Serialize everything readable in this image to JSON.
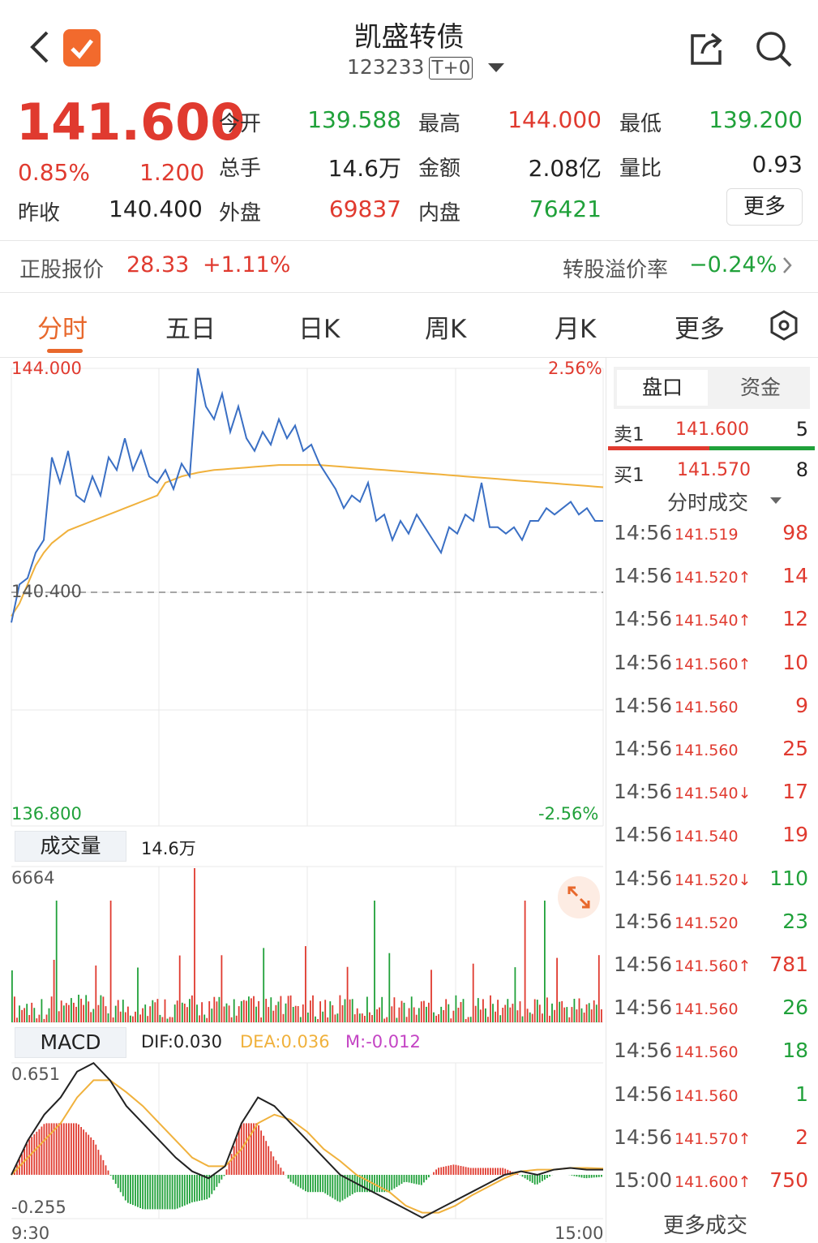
{
  "header": {
    "title": "凯盛转债",
    "code": "123233",
    "trade_tag": "T+0"
  },
  "quote": {
    "price": "141.600",
    "change_pct": "0.85%",
    "change": "1.200",
    "prev_close_label": "昨收",
    "prev_close": "140.400",
    "open_label": "今开",
    "open": "139.588",
    "high_label": "最高",
    "high": "144.000",
    "low_label": "最低",
    "low": "139.200",
    "volume_label": "总手",
    "volume": "14.6万",
    "amount_label": "金额",
    "amount": "2.08亿",
    "ratio_label": "量比",
    "ratio": "0.93",
    "outer_label": "外盘",
    "outer": "69837",
    "inner_label": "内盘",
    "inner": "76421",
    "more_label": "更多"
  },
  "stock": {
    "label": "正股报价",
    "price": "28.33",
    "change": "+1.11%",
    "premium_label": "转股溢价率",
    "premium": "−0.24%"
  },
  "tabs": [
    "分时",
    "五日",
    "日K",
    "周K",
    "月K",
    "更多"
  ],
  "chart": {
    "y_top": "144.000",
    "y_bottom": "136.800",
    "y_mid": "140.400",
    "pct_top": "2.56%",
    "pct_bottom": "-2.56%",
    "vol_label": "成交量",
    "vol_value": "14.6万",
    "vol_max": "6664",
    "macd_label": "MACD",
    "dif": "DIF:0.030",
    "dea": "DEA:0.036",
    "m": "M:-0.012",
    "macd_top": "0.651",
    "macd_bottom": "-0.255",
    "t_start": "9:30",
    "t_end": "15:00",
    "colors": {
      "price": "#3a6fc4",
      "avg": "#f0b13c",
      "up": "#e03a2f",
      "down": "#20a13a",
      "dea": "#f0b13c",
      "m": "#c444c4"
    }
  },
  "chart_data": {
    "type": "line",
    "price": [
      140.0,
      140.6,
      140.7,
      141.1,
      141.3,
      142.6,
      142.2,
      142.7,
      142.0,
      141.9,
      142.3,
      142.0,
      142.6,
      142.4,
      142.9,
      142.4,
      142.7,
      142.3,
      142.2,
      142.4,
      142.1,
      142.5,
      142.3,
      144.0,
      143.4,
      143.2,
      143.6,
      143.0,
      143.4,
      142.9,
      142.7,
      143.0,
      142.8,
      143.2,
      142.9,
      143.1,
      142.7,
      142.8,
      142.5,
      142.3,
      142.1,
      141.8,
      142.0,
      141.9,
      142.2,
      141.6,
      141.7,
      141.3,
      141.6,
      141.4,
      141.7,
      141.5,
      141.3,
      141.1,
      141.5,
      141.4,
      141.7,
      141.6,
      142.2,
      141.5,
      141.5,
      141.4,
      141.5,
      141.3,
      141.6,
      141.6,
      141.8,
      141.7,
      141.8,
      141.9,
      141.7,
      141.8,
      141.6,
      141.6
    ],
    "avg": [
      140.1,
      140.3,
      140.6,
      140.9,
      141.1,
      141.25,
      141.35,
      141.45,
      141.5,
      141.55,
      141.6,
      141.65,
      141.7,
      141.75,
      141.8,
      141.85,
      141.9,
      141.95,
      142.0,
      142.2,
      142.25,
      142.3,
      142.33,
      142.36,
      142.38,
      142.4,
      142.41,
      142.42,
      142.43,
      142.44,
      142.45,
      142.46,
      142.47,
      142.48,
      142.48,
      142.48,
      142.48,
      142.48,
      142.48,
      142.47,
      142.46,
      142.45,
      142.44,
      142.43,
      142.42,
      142.41,
      142.4,
      142.39,
      142.38,
      142.37,
      142.36,
      142.35,
      142.34,
      142.33,
      142.32,
      142.31,
      142.3,
      142.29,
      142.28,
      142.27,
      142.26,
      142.25,
      142.24,
      142.23,
      142.22,
      142.21,
      142.2,
      142.19,
      142.18,
      142.17,
      142.16,
      142.15,
      142.14,
      142.13
    ],
    "ylim": [
      136.8,
      144.0
    ],
    "macd_dif": [
      0.0,
      0.2,
      0.35,
      0.45,
      0.6,
      0.65,
      0.55,
      0.4,
      0.3,
      0.2,
      0.1,
      0.02,
      -0.02,
      0.05,
      0.3,
      0.45,
      0.4,
      0.3,
      0.2,
      0.1,
      0.0,
      -0.05,
      -0.1,
      -0.15,
      -0.2,
      -0.25,
      -0.2,
      -0.15,
      -0.1,
      -0.05,
      0.0,
      0.02,
      0.0,
      0.03,
      0.04,
      0.03,
      0.03
    ],
    "macd_dea": [
      0.0,
      0.1,
      0.2,
      0.3,
      0.45,
      0.55,
      0.55,
      0.48,
      0.4,
      0.3,
      0.2,
      0.1,
      0.05,
      0.05,
      0.15,
      0.3,
      0.35,
      0.32,
      0.25,
      0.15,
      0.08,
      0.0,
      -0.05,
      -0.1,
      -0.18,
      -0.22,
      -0.22,
      -0.18,
      -0.12,
      -0.07,
      -0.02,
      0.02,
      0.03,
      0.03,
      0.04,
      0.04,
      0.036
    ],
    "ylim_macd": [
      -0.255,
      0.651
    ]
  },
  "side": {
    "tab_active": "盘口",
    "tab_other": "资金",
    "sell_label": "卖1",
    "sell_price": "141.600",
    "sell_vol": "5",
    "buy_label": "买1",
    "buy_price": "141.570",
    "buy_vol": "8",
    "trades_header": "分时成交",
    "more_trades": "更多成交"
  },
  "trades": [
    {
      "time": "14:56",
      "price": "141.519",
      "vol": "98",
      "dir": "",
      "color": "red"
    },
    {
      "time": "14:56",
      "price": "141.520↑",
      "vol": "14",
      "dir": "up",
      "color": "red"
    },
    {
      "time": "14:56",
      "price": "141.540↑",
      "vol": "12",
      "dir": "up",
      "color": "red"
    },
    {
      "time": "14:56",
      "price": "141.560↑",
      "vol": "10",
      "dir": "up",
      "color": "red"
    },
    {
      "time": "14:56",
      "price": "141.560",
      "vol": "9",
      "dir": "",
      "color": "red"
    },
    {
      "time": "14:56",
      "price": "141.560",
      "vol": "25",
      "dir": "",
      "color": "red"
    },
    {
      "time": "14:56",
      "price": "141.540↓",
      "vol": "17",
      "dir": "down",
      "color": "red"
    },
    {
      "time": "14:56",
      "price": "141.540",
      "vol": "19",
      "dir": "",
      "color": "red"
    },
    {
      "time": "14:56",
      "price": "141.520↓",
      "vol": "110",
      "dir": "down",
      "color": "green"
    },
    {
      "time": "14:56",
      "price": "141.520",
      "vol": "23",
      "dir": "",
      "color": "green"
    },
    {
      "time": "14:56",
      "price": "141.560↑",
      "vol": "781",
      "dir": "up",
      "color": "red"
    },
    {
      "time": "14:56",
      "price": "141.560",
      "vol": "26",
      "dir": "",
      "color": "green"
    },
    {
      "time": "14:56",
      "price": "141.560",
      "vol": "18",
      "dir": "",
      "color": "green"
    },
    {
      "time": "14:56",
      "price": "141.560",
      "vol": "1",
      "dir": "",
      "color": "green"
    },
    {
      "time": "14:56",
      "price": "141.570↑",
      "vol": "2",
      "dir": "up",
      "color": "red"
    },
    {
      "time": "15:00",
      "price": "141.600↑",
      "vol": "750",
      "dir": "up",
      "color": "red"
    }
  ]
}
